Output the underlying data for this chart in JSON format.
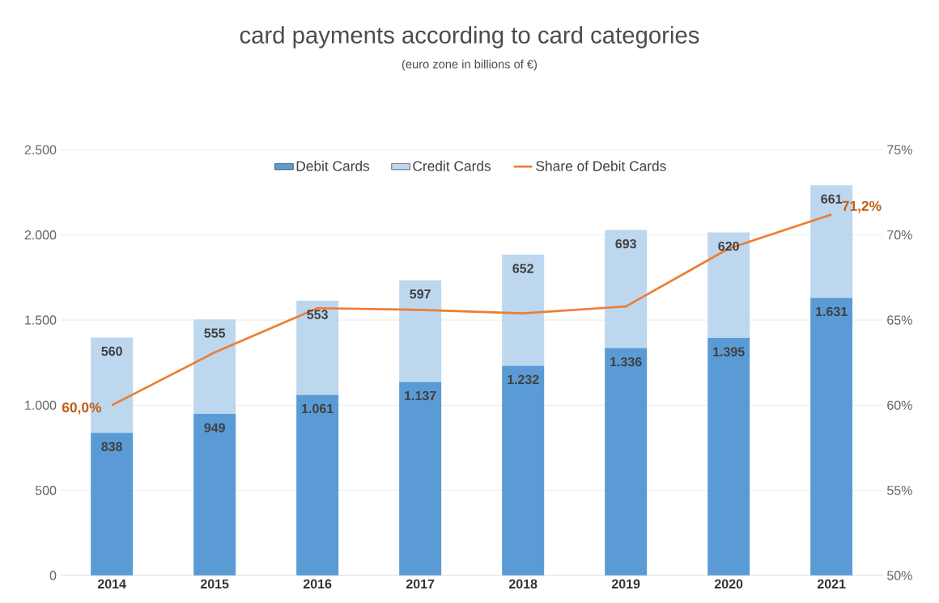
{
  "chart_data": {
    "type": "bar",
    "title": "card payments according to card categories",
    "subtitle": "(euro zone in billions of €)",
    "categories": [
      "2014",
      "2015",
      "2016",
      "2017",
      "2018",
      "2019",
      "2020",
      "2021"
    ],
    "stacked": true,
    "series": [
      {
        "name": "Debit Cards",
        "color": "#5b9bd5",
        "values": [
          838,
          949,
          1061,
          1137,
          1232,
          1336,
          1395,
          1631
        ],
        "value_labels": [
          "838",
          "949",
          "1.061",
          "1.137",
          "1.232",
          "1.336",
          "1.395",
          "1.631"
        ]
      },
      {
        "name": "Credit Cards",
        "color": "#bdd7ee",
        "values": [
          560,
          555,
          553,
          597,
          652,
          693,
          620,
          661
        ],
        "value_labels": [
          "560",
          "555",
          "553",
          "597",
          "652",
          "693",
          "620",
          "661"
        ]
      },
      {
        "name": "Share of Debit Cards",
        "type": "line",
        "axis": "y2",
        "color": "#ed7d31",
        "values": [
          60.0,
          63.1,
          65.7,
          65.6,
          65.4,
          65.8,
          69.2,
          71.2
        ],
        "value_labels": [
          "60,0%",
          null,
          null,
          null,
          null,
          null,
          null,
          "71,2%"
        ]
      }
    ],
    "ylim": [
      0,
      2500
    ],
    "yticks": [
      0,
      500,
      {
        "value": 1000,
        "label": "1.000"
      },
      {
        "value": 1500,
        "label": "1.500"
      },
      {
        "value": 2000,
        "label": "2.000"
      },
      {
        "value": 2500,
        "label": "2.500"
      }
    ],
    "y2lim": [
      50,
      75
    ],
    "y2ticks": [
      {
        "value": 50,
        "label": "50%"
      },
      {
        "value": 55,
        "label": "55%"
      },
      {
        "value": 60,
        "label": "60%"
      },
      {
        "value": 65,
        "label": "65%"
      },
      {
        "value": 70,
        "label": "70%"
      },
      {
        "value": 75,
        "label": "75%"
      }
    ],
    "grid": "y",
    "legend": "top"
  }
}
